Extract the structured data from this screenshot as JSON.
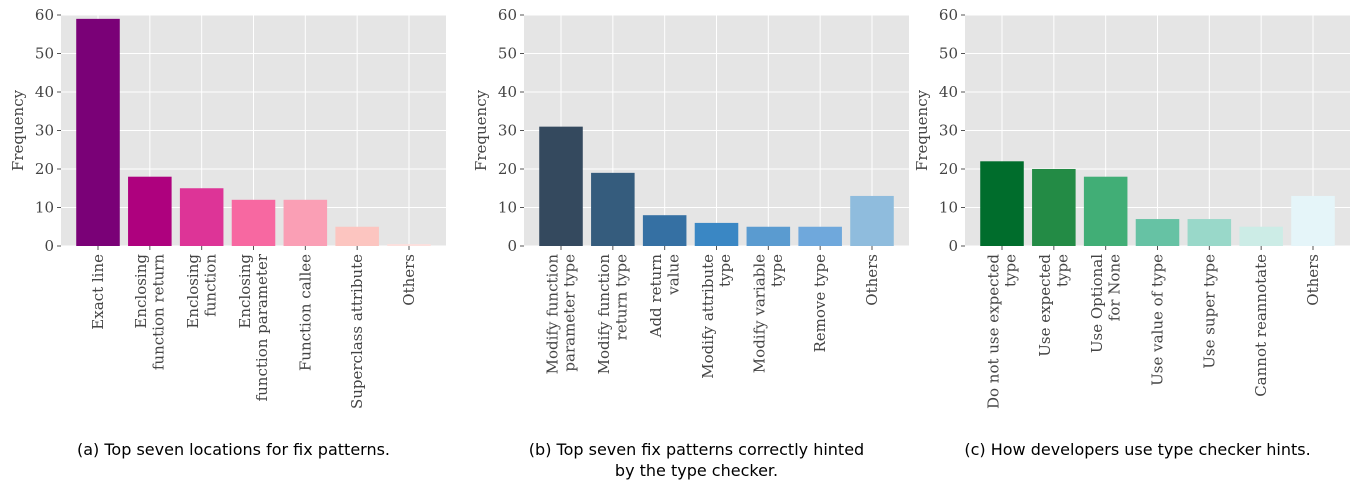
{
  "chart_data": [
    {
      "type": "bar",
      "caption": "(a) Top seven locations for fix patterns.",
      "ylabel": "Frequency",
      "categories": [
        "Exact line",
        "Enclosing\nfunction return",
        "Enclosing\nfunction",
        "Enclosing\nfunction parameter",
        "Function callee",
        "Superclass attribute",
        "Others"
      ],
      "values": [
        59,
        18,
        15,
        12,
        12,
        5,
        0.5
      ],
      "colors": [
        "#7a0177",
        "#ae017e",
        "#dd3497",
        "#f768a1",
        "#fa9fb5",
        "#fcc5c0",
        "#fde0dd"
      ],
      "ylim": [
        0,
        60
      ],
      "yticks": [
        0,
        10,
        20,
        30,
        40,
        50,
        60
      ],
      "grid": true
    },
    {
      "type": "bar",
      "caption": "(b) Top seven fix patterns correctly hinted\nby the type checker.",
      "ylabel": "Frequency",
      "categories": [
        "Modify function\nparameter type",
        "Modify function\nreturn type",
        "Add return\nvalue",
        "Modify attribute\ntype",
        "Modify variable\ntype",
        "Remove type",
        "Others"
      ],
      "values": [
        31,
        19,
        8,
        6,
        5,
        5,
        13
      ],
      "colors": [
        "#34495e",
        "#355c7d",
        "#3570a3",
        "#3a87c4",
        "#5a9bd0",
        "#6fa8dc",
        "#8fbcdd"
      ],
      "ylim": [
        0,
        60
      ],
      "yticks": [
        0,
        10,
        20,
        30,
        40,
        50,
        60
      ],
      "grid": true
    },
    {
      "type": "bar",
      "caption": "(c) How developers use type checker hints.",
      "ylabel": "Frequency",
      "categories": [
        "Do not use expected\ntype",
        "Use expected\ntype",
        "Use Optional\nfor None",
        "Use value of type",
        "Use super type",
        "Cannot reannotate",
        "Others"
      ],
      "values": [
        22,
        20,
        18,
        7,
        7,
        5,
        13
      ],
      "colors": [
        "#006d2c",
        "#238b45",
        "#41ae76",
        "#66c2a4",
        "#99d8c9",
        "#ccece6",
        "#e5f5f9"
      ],
      "ylim": [
        0,
        60
      ],
      "yticks": [
        0,
        10,
        20,
        30,
        40,
        50,
        60
      ],
      "grid": true
    }
  ]
}
